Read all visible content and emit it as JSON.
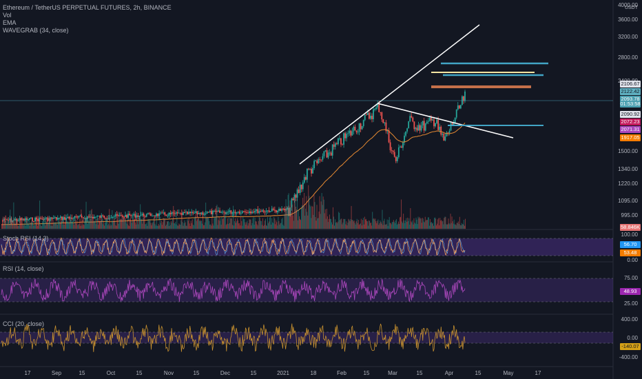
{
  "main": {
    "title": "Ethereum / TetherUS PERPETUAL FUTURES, 2h, BINANCE",
    "indicators": [
      "Vol",
      "EMA",
      "WAVEGRAB (34, close)"
    ],
    "currency": "USDT",
    "price_axis": [
      "4000.00",
      "3600.00",
      "3200.00",
      "2800.00",
      "2400.00",
      "1500.00",
      "1340.00",
      "1220.00",
      "1095.00",
      "995.00"
    ],
    "badges": [
      {
        "text": "2106.67",
        "color": "#e0e3eb",
        "fg": "#131722"
      },
      {
        "text": "2122.42",
        "color": "#5fb1c2",
        "fg": "#131722"
      },
      {
        "text": "2093.78",
        "color": "#4a9fb0",
        "fg": "#ffffff"
      },
      {
        "text": "01:53:58",
        "color": "#4a9fb0",
        "fg": "#ffffff"
      },
      {
        "text": "2090.92",
        "color": "#e0e3eb",
        "fg": "#131722"
      },
      {
        "text": "2072.23",
        "color": "#c2185b",
        "fg": "#ffffff"
      },
      {
        "text": "2071.31",
        "color": "#ab47bc",
        "fg": "#ffffff"
      },
      {
        "text": "1917.05",
        "color": "#f57c00",
        "fg": "#ffffff"
      },
      {
        "text": "58.846K",
        "color": "#e57373",
        "fg": "#ffffff"
      }
    ]
  },
  "osc1": {
    "legend": "Stoch RSI (14,3)",
    "axis": [
      "100.00",
      "0.00"
    ],
    "badges": [
      {
        "text": "56.70",
        "color": "#2196f3",
        "fg": "#ffffff"
      },
      {
        "text": "53.48",
        "color": "#f57c00",
        "fg": "#ffffff"
      }
    ]
  },
  "rsi": {
    "legend": "RSI (14, close)",
    "axis": [
      "75.00",
      "25.00"
    ],
    "badges": [
      {
        "text": "48.93",
        "color": "#9c27b0",
        "fg": "#ffffff"
      }
    ]
  },
  "cci": {
    "legend": "CCI (20, close)",
    "axis": [
      "400.00",
      "0.00",
      "-400.00"
    ],
    "badges": [
      {
        "text": "-140.07",
        "color": "#d4a017",
        "fg": "#131722"
      }
    ]
  },
  "time_axis": [
    "17",
    "Sep",
    "15",
    "Oct",
    "15",
    "Nov",
    "15",
    "Dec",
    "15",
    "2021",
    "18",
    "Feb",
    "15",
    "Mar",
    "15",
    "Apr",
    "15",
    "May",
    "17"
  ],
  "colors": {
    "up": "#26a69a",
    "down": "#ef5350",
    "ema": "#e68a32",
    "trend": "#ffffff",
    "rsi": "#ab47bc",
    "cci": "#c8912f",
    "stoch": "#f7a35c"
  }
}
